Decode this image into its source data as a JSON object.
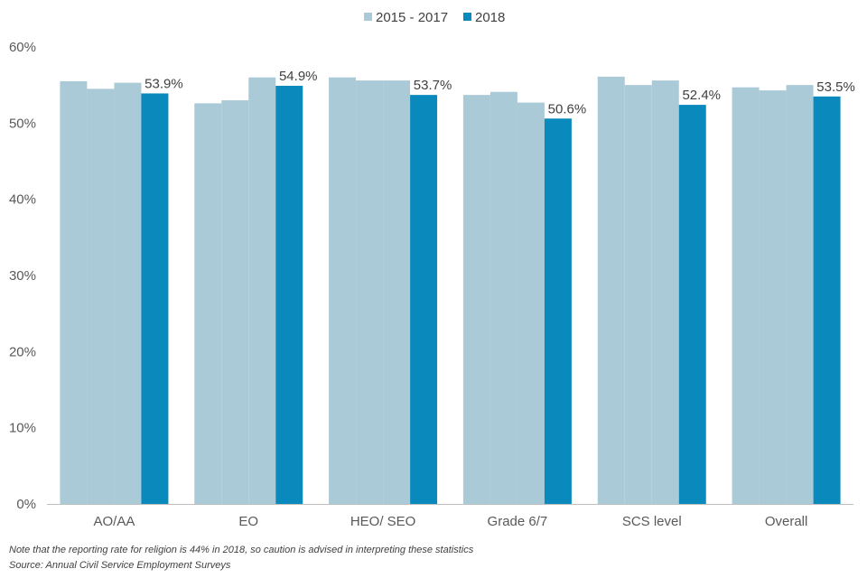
{
  "chart_data": {
    "type": "bar",
    "title": "",
    "xlabel": "",
    "ylabel": "",
    "ylim": [
      0,
      60
    ],
    "yticks": [
      0,
      10,
      20,
      30,
      40,
      50,
      60
    ],
    "ytick_format": "{v}%",
    "grid": false,
    "legend_position": "top-center",
    "categories": [
      "AO/AA",
      "EO",
      "HEO/ SEO",
      "Grade 6/7",
      "SCS level",
      "Overall"
    ],
    "series": [
      {
        "name": "2015 - 2017",
        "color": "#abcad7",
        "sub_bars": 3,
        "values": [
          [
            55.5,
            54.5,
            55.3
          ],
          [
            52.6,
            53.0,
            56.0
          ],
          [
            56.0,
            55.6,
            55.6
          ],
          [
            53.7,
            54.1,
            52.7
          ],
          [
            56.1,
            55.0,
            55.6
          ],
          [
            54.7,
            54.3,
            55.0
          ]
        ]
      },
      {
        "name": "2018",
        "color": "#0a8abc",
        "values": [
          53.9,
          54.9,
          53.7,
          50.6,
          52.4,
          53.5
        ],
        "data_labels": [
          "53.9%",
          "54.9%",
          "53.7%",
          "50.6%",
          "52.4%",
          "53.5%"
        ]
      }
    ]
  },
  "notes": {
    "note": "Note that the reporting rate for religion is 44% in 2018, so caution is advised in interpreting  these statistics",
    "source": "Source: Annual Civil Service Employment Surveys"
  }
}
